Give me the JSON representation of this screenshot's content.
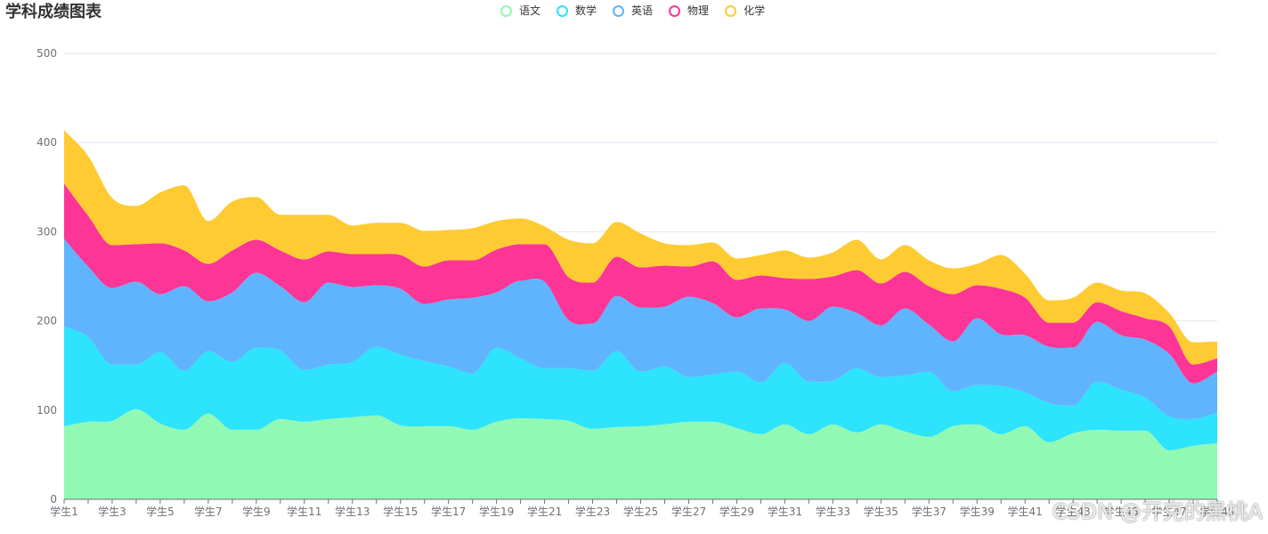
{
  "chart_data": {
    "type": "area",
    "stacked": true,
    "smooth": true,
    "title": "学科成绩图表",
    "legend_position": "top-center",
    "grid": true,
    "ylim": [
      0,
      500
    ],
    "yticks": [
      "0",
      "100",
      "200",
      "300",
      "400",
      "500"
    ],
    "categories": [
      "学生1",
      "学生2",
      "学生3",
      "学生4",
      "学生5",
      "学生6",
      "学生7",
      "学生8",
      "学生9",
      "学生10",
      "学生11",
      "学生12",
      "学生13",
      "学生14",
      "学生15",
      "学生16",
      "学生17",
      "学生18",
      "学生19",
      "学生20",
      "学生21",
      "学生22",
      "学生23",
      "学生24",
      "学生25",
      "学生26",
      "学生27",
      "学生28",
      "学生29",
      "学生30",
      "学生31",
      "学生32",
      "学生33",
      "学生34",
      "学生35",
      "学生36",
      "学生37",
      "学生38",
      "学生39",
      "学生40",
      "学生41",
      "学生42",
      "学生43",
      "学生44",
      "学生45",
      "学生46",
      "学生47",
      "学生48",
      "学生49"
    ],
    "xtick_labels": [
      "学生1",
      "学生3",
      "学生5",
      "学生7",
      "学生9",
      "学生11",
      "学生13",
      "学生15",
      "学生17",
      "学生19",
      "学生21",
      "学生23",
      "学生25",
      "学生27",
      "学生29",
      "学生31",
      "学生33",
      "学生35",
      "学生37",
      "学生39",
      "学生41",
      "学生43",
      "学生45",
      "学生47",
      "学生49"
    ],
    "series": [
      {
        "name": "语文",
        "color": "#91f9b3",
        "values": [
          82,
          87,
          88,
          101,
          85,
          78,
          96,
          78,
          78,
          90,
          87,
          90,
          92,
          94,
          83,
          82,
          82,
          78,
          87,
          91,
          90,
          88,
          79,
          81,
          82,
          84,
          87,
          87,
          80,
          73,
          84,
          73,
          84,
          75,
          84,
          76,
          70,
          82,
          84,
          73,
          82,
          64,
          74,
          78,
          77,
          77,
          55,
          60,
          63
        ]
      },
      {
        "name": "数学",
        "color": "#2de3fd",
        "values": [
          112,
          95,
          63,
          50,
          80,
          66,
          70,
          76,
          92,
          77,
          58,
          61,
          62,
          77,
          79,
          73,
          67,
          63,
          83,
          67,
          57,
          59,
          65,
          85,
          61,
          65,
          50,
          53,
          63,
          58,
          69,
          59,
          49,
          72,
          53,
          63,
          73,
          39,
          44,
          54,
          38,
          44,
          31,
          54,
          46,
          37,
          38,
          30,
          34
        ]
      },
      {
        "name": "英语",
        "color": "#5fb4fd",
        "values": [
          98,
          79,
          86,
          93,
          65,
          95,
          56,
          78,
          84,
          72,
          76,
          92,
          84,
          69,
          74,
          64,
          75,
          85,
          62,
          87,
          97,
          54,
          53,
          62,
          72,
          67,
          90,
          80,
          61,
          83,
          60,
          68,
          83,
          62,
          58,
          75,
          53,
          56,
          75,
          58,
          64,
          63,
          65,
          67,
          61,
          65,
          70,
          40,
          46
        ]
      },
      {
        "name": "物理",
        "color": "#fd3597",
        "values": [
          62,
          57,
          48,
          42,
          57,
          40,
          42,
          47,
          37,
          40,
          48,
          35,
          37,
          35,
          38,
          42,
          44,
          42,
          48,
          41,
          42,
          48,
          46,
          44,
          45,
          46,
          34,
          47,
          42,
          37,
          35,
          47,
          34,
          48,
          47,
          41,
          43,
          53,
          37,
          51,
          42,
          27,
          28,
          22,
          27,
          24,
          31,
          21,
          15
        ]
      },
      {
        "name": "化学",
        "color": "#ffcb32",
        "values": [
          60,
          67,
          53,
          43,
          57,
          73,
          48,
          55,
          48,
          40,
          50,
          41,
          32,
          35,
          36,
          40,
          34,
          36,
          32,
          29,
          20,
          42,
          44,
          39,
          38,
          25,
          24,
          21,
          24,
          23,
          31,
          24,
          27,
          34,
          27,
          30,
          29,
          29,
          24,
          38,
          27,
          25,
          28,
          22,
          23,
          28,
          15,
          25,
          19
        ]
      }
    ]
  },
  "watermark": "CSDN @开克的黑桃A"
}
